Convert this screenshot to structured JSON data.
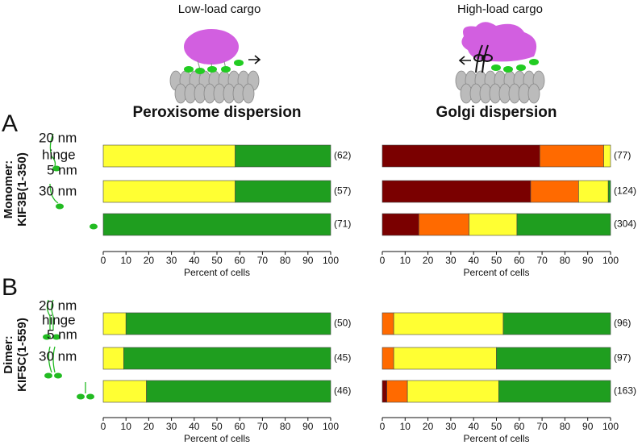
{
  "headings": {
    "left": "Low-load cargo",
    "right": "High-load cargo"
  },
  "rows": [
    {
      "letter": "A",
      "group": "Monomer:",
      "construct": "KIF3B(1-350)",
      "annotations": [
        "20 nm",
        "hinge",
        "5 nm",
        "30 nm"
      ]
    },
    {
      "letter": "B",
      "group": "Dimer:",
      "construct": "KIF5C(1-559)",
      "annotations": [
        "20 nm",
        "hinge",
        "5 nm",
        "30 nm"
      ]
    }
  ],
  "chart_data": [
    {
      "type": "bar",
      "orientation": "horizontal",
      "stacked": true,
      "title": "Peroxisome dispersion",
      "xlabel": "Percent of cells",
      "categories": [
        null,
        null,
        null
      ],
      "xlim": [
        0,
        100
      ],
      "xticks": [
        0,
        10,
        20,
        30,
        40,
        50,
        60,
        70,
        80,
        90,
        100
      ],
      "series": [
        {
          "color": "#ffff33",
          "values": [
            58,
            58,
            0
          ]
        },
        {
          "color": "#1f9e1f",
          "values": [
            42,
            42,
            100
          ]
        }
      ],
      "bar_annotations": [
        "(62)",
        "(57)",
        "(71)"
      ]
    },
    {
      "type": "bar",
      "orientation": "horizontal",
      "stacked": true,
      "title": "Golgi dispersion",
      "xlabel": "Percent of cells",
      "categories": [
        null,
        null,
        null
      ],
      "xlim": [
        0,
        100
      ],
      "xticks": [
        0,
        10,
        20,
        30,
        40,
        50,
        60,
        70,
        80,
        90,
        100
      ],
      "series": [
        {
          "color": "#7a0000",
          "values": [
            69,
            65,
            16
          ]
        },
        {
          "color": "#ff6a00",
          "values": [
            28,
            21,
            22
          ]
        },
        {
          "color": "#ffff33",
          "values": [
            3,
            13,
            21
          ]
        },
        {
          "color": "#1f9e1f",
          "values": [
            0,
            1,
            41
          ]
        }
      ],
      "bar_annotations": [
        "(77)",
        "(124)",
        "(304)"
      ]
    },
    {
      "type": "bar",
      "orientation": "horizontal",
      "stacked": true,
      "xlabel": "Percent of cells",
      "categories": [
        null,
        null,
        null
      ],
      "xlim": [
        0,
        100
      ],
      "xticks": [
        0,
        10,
        20,
        30,
        40,
        50,
        60,
        70,
        80,
        90,
        100
      ],
      "series": [
        {
          "color": "#ffff33",
          "values": [
            10,
            9,
            19
          ]
        },
        {
          "color": "#1f9e1f",
          "values": [
            90,
            91,
            81
          ]
        }
      ],
      "bar_annotations": [
        "(50)",
        "(45)",
        "(46)"
      ]
    },
    {
      "type": "bar",
      "orientation": "horizontal",
      "stacked": true,
      "xlabel": "Percent of cells",
      "categories": [
        null,
        null,
        null
      ],
      "xlim": [
        0,
        100
      ],
      "xticks": [
        0,
        10,
        20,
        30,
        40,
        50,
        60,
        70,
        80,
        90,
        100
      ],
      "series": [
        {
          "color": "#7a0000",
          "values": [
            0,
            0,
            2
          ]
        },
        {
          "color": "#ff6a00",
          "values": [
            5,
            5,
            9
          ]
        },
        {
          "color": "#ffff33",
          "values": [
            48,
            45,
            40
          ]
        },
        {
          "color": "#1f9e1f",
          "values": [
            47,
            50,
            49
          ]
        }
      ],
      "bar_annotations": [
        "(96)",
        "(97)",
        "(163)"
      ]
    }
  ]
}
